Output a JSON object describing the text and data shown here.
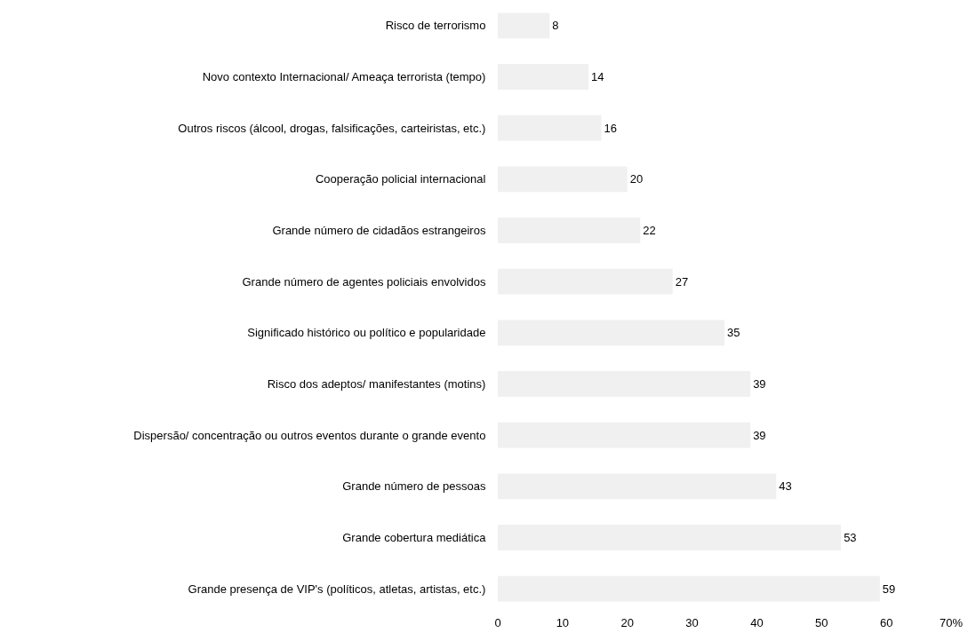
{
  "chart_data": {
    "type": "bar",
    "orientation": "horizontal",
    "categories": [
      "Risco de terrorismo",
      "Novo contexto Internacional/ Ameaça terrorista (tempo)",
      "Outros riscos (álcool, drogas, falsificações, carteiristas, etc.)",
      "Cooperação policial internacional",
      "Grande número de cidadãos estrangeiros",
      "Grande número de agentes policiais envolvidos",
      "Significado histórico ou político e popularidade",
      "Risco dos adeptos/ manifestantes (motins)",
      "Dispersão/ concentração ou outros eventos durante o grande evento",
      "Grande número de pessoas",
      "Grande cobertura mediática",
      "Grande presença de VIP's (políticos, atletas, artistas, etc.)"
    ],
    "values": [
      8,
      14,
      16,
      20,
      22,
      27,
      35,
      39,
      39,
      43,
      53,
      59
    ],
    "color": "#f0f0f0",
    "data_labels": true,
    "xlim": [
      0,
      70
    ],
    "xticks": [
      0,
      10,
      20,
      30,
      40,
      50,
      60,
      {
        "value": 70,
        "label": "70%"
      }
    ]
  }
}
